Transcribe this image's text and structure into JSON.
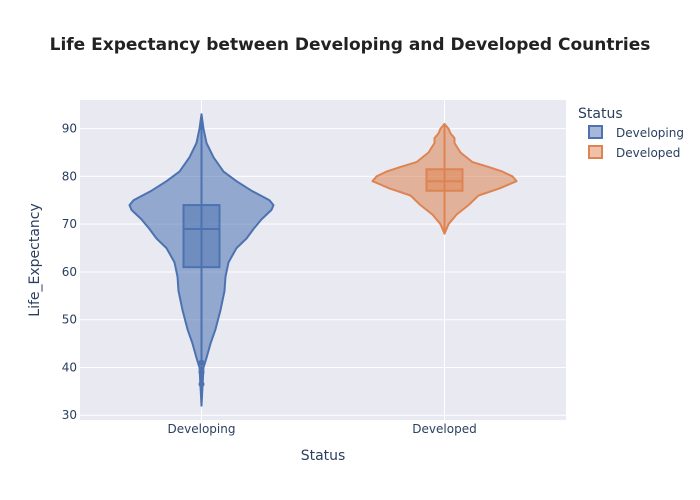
{
  "chart_data": {
    "type": "violin",
    "title": "Life Expectancy between Developing and Developed Countries",
    "xlabel": "Status",
    "ylabel": "Life_Expectancy",
    "ylim": [
      29,
      96
    ],
    "yticks": [
      30,
      40,
      50,
      60,
      70,
      80,
      90
    ],
    "grid": true,
    "legend": {
      "title": "Status",
      "position": "top-right"
    },
    "categories": [
      "Developing",
      "Developed"
    ],
    "series": [
      {
        "name": "Developing",
        "color": "#4c72b0",
        "min": 44,
        "q1": 61,
        "median": 69,
        "q3": 74,
        "upper_whisker": 90,
        "outliers": [
          41,
          39,
          36.5
        ],
        "range": [
          32,
          93
        ]
      },
      {
        "name": "Developed",
        "color": "#dd8452",
        "min": 70,
        "q1": 77,
        "median": 79,
        "q3": 81.5,
        "upper_whisker": 89,
        "outliers": [],
        "range": [
          68,
          91
        ]
      }
    ]
  }
}
